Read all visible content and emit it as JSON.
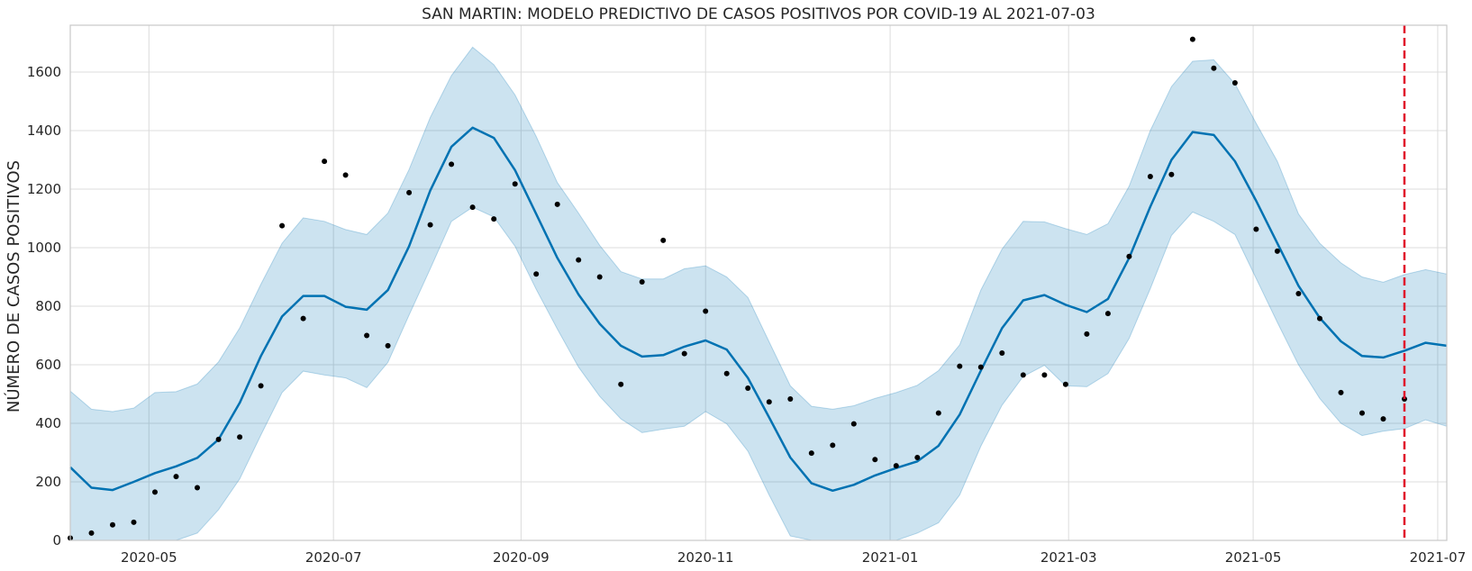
{
  "chart_data": {
    "type": "line",
    "title": "SAN MARTIN: MODELO PREDICTIVO DE CASOS POSITIVOS POR COVID-19 AL 2021-07-03",
    "xlabel": "",
    "ylabel": "NÚMERO DE CASOS POSITIVOS",
    "xlim": [
      "2020-04-05",
      "2021-07-04"
    ],
    "ylim": [
      0,
      1760
    ],
    "y_ticks": [
      0,
      200,
      400,
      600,
      800,
      1000,
      1200,
      1400,
      1600
    ],
    "x_ticks": [
      "2020-05",
      "2020-07",
      "2020-09",
      "2020-11",
      "2021-01",
      "2021-03",
      "2021-05",
      "2021-07"
    ],
    "x_tick_dates": [
      "2020-05-01",
      "2020-07-01",
      "2020-09-01",
      "2020-11-01",
      "2021-01-01",
      "2021-03-01",
      "2021-05-01",
      "2021-07-01"
    ],
    "grid": true,
    "forecast_cutoff": "2021-06-20",
    "colors": {
      "forecast": "#0072b2",
      "band": "#0072b2",
      "observed": "#000000",
      "cutoff": "#e0102a"
    },
    "series": [
      {
        "type": "line",
        "x": [
          "2020-04-05",
          "2020-04-12",
          "2020-04-19",
          "2020-04-26",
          "2020-05-03",
          "2020-05-10",
          "2020-05-17",
          "2020-05-24",
          "2020-05-31",
          "2020-06-07",
          "2020-06-14",
          "2020-06-21",
          "2020-06-28",
          "2020-07-05",
          "2020-07-12",
          "2020-07-19",
          "2020-07-26",
          "2020-08-02",
          "2020-08-09",
          "2020-08-16",
          "2020-08-23",
          "2020-08-30",
          "2020-09-06",
          "2020-09-13",
          "2020-09-20",
          "2020-09-27",
          "2020-10-04",
          "2020-10-11",
          "2020-10-18",
          "2020-10-25",
          "2020-11-01",
          "2020-11-08",
          "2020-11-15",
          "2020-11-22",
          "2020-11-29",
          "2020-12-06",
          "2020-12-13",
          "2020-12-20",
          "2020-12-27",
          "2021-01-03",
          "2021-01-10",
          "2021-01-17",
          "2021-01-24",
          "2021-01-31",
          "2021-02-07",
          "2021-02-14",
          "2021-02-21",
          "2021-02-28",
          "2021-03-07",
          "2021-03-14",
          "2021-03-21",
          "2021-03-28",
          "2021-04-04",
          "2021-04-11",
          "2021-04-18",
          "2021-04-25",
          "2021-05-02",
          "2021-05-09",
          "2021-05-16",
          "2021-05-23",
          "2021-05-30",
          "2021-06-06",
          "2021-06-13",
          "2021-06-20",
          "2021-06-27",
          "2021-07-04"
        ],
        "y": [
          250,
          180,
          172,
          200,
          230,
          253,
          282,
          345,
          470,
          630,
          765,
          835,
          835,
          798,
          788,
          855,
          1005,
          1195,
          1345,
          1410,
          1375,
          1265,
          1115,
          965,
          840,
          740,
          665,
          628,
          633,
          662,
          683,
          652,
          555,
          420,
          283,
          195,
          170,
          190,
          222,
          247,
          270,
          323,
          430,
          580,
          725,
          820,
          838,
          805,
          780,
          825,
          965,
          1140,
          1300,
          1395,
          1385,
          1295,
          1160,
          1015,
          870,
          760,
          680,
          630,
          625,
          648,
          675,
          665
        ]
      },
      {
        "type": "band",
        "x_ref": "series.0.x",
        "upper": [
          510,
          448,
          440,
          452,
          505,
          508,
          534,
          610,
          726,
          875,
          1015,
          1102,
          1090,
          1062,
          1045,
          1118,
          1267,
          1445,
          1588,
          1685,
          1625,
          1522,
          1380,
          1222,
          1118,
          1008,
          918,
          893,
          893,
          928,
          938,
          900,
          830,
          678,
          528,
          458,
          448,
          460,
          485,
          505,
          530,
          580,
          668,
          855,
          995,
          1090,
          1088,
          1065,
          1045,
          1082,
          1210,
          1400,
          1550,
          1637,
          1642,
          1560,
          1425,
          1295,
          1115,
          1015,
          948,
          900,
          882,
          908,
          925,
          910
        ],
        "lower": [
          0,
          0,
          0,
          0,
          0,
          0,
          25,
          105,
          210,
          360,
          505,
          578,
          565,
          555,
          522,
          608,
          770,
          928,
          1090,
          1138,
          1105,
          1005,
          858,
          722,
          592,
          492,
          415,
          368,
          380,
          390,
          440,
          398,
          305,
          155,
          15,
          0,
          0,
          0,
          0,
          0,
          25,
          60,
          155,
          322,
          462,
          560,
          598,
          528,
          525,
          570,
          690,
          860,
          1042,
          1122,
          1090,
          1045,
          895,
          745,
          600,
          485,
          400,
          358,
          373,
          382,
          412,
          390
        ]
      },
      {
        "type": "scatter",
        "x": [
          "2020-04-05",
          "2020-04-12",
          "2020-04-19",
          "2020-04-26",
          "2020-05-03",
          "2020-05-10",
          "2020-05-17",
          "2020-05-24",
          "2020-05-31",
          "2020-06-07",
          "2020-06-14",
          "2020-06-21",
          "2020-06-28",
          "2020-07-05",
          "2020-07-12",
          "2020-07-19",
          "2020-07-26",
          "2020-08-02",
          "2020-08-09",
          "2020-08-16",
          "2020-08-23",
          "2020-08-30",
          "2020-09-06",
          "2020-09-13",
          "2020-09-20",
          "2020-09-27",
          "2020-10-04",
          "2020-10-11",
          "2020-10-18",
          "2020-10-25",
          "2020-11-01",
          "2020-11-08",
          "2020-11-15",
          "2020-11-22",
          "2020-11-29",
          "2020-12-06",
          "2020-12-13",
          "2020-12-20",
          "2020-12-27",
          "2021-01-03",
          "2021-01-10",
          "2021-01-17",
          "2021-01-24",
          "2021-01-31",
          "2021-02-07",
          "2021-02-14",
          "2021-02-21",
          "2021-02-28",
          "2021-03-07",
          "2021-03-14",
          "2021-03-21",
          "2021-03-28",
          "2021-04-04",
          "2021-04-11",
          "2021-04-18",
          "2021-04-25",
          "2021-05-02",
          "2021-05-09",
          "2021-05-16",
          "2021-05-23",
          "2021-05-30",
          "2021-06-06",
          "2021-06-13",
          "2021-06-20"
        ],
        "y": [
          8,
          25,
          53,
          62,
          165,
          218,
          180,
          345,
          353,
          528,
          1075,
          758,
          1295,
          1248,
          700,
          665,
          1188,
          1078,
          1285,
          1138,
          1098,
          1218,
          910,
          1148,
          958,
          900,
          533,
          883,
          1025,
          638,
          783,
          570,
          520,
          473,
          483,
          298,
          325,
          398,
          276,
          255,
          283,
          435,
          595,
          592,
          640,
          565,
          565,
          533,
          705,
          775,
          970,
          1243,
          1250,
          1712,
          1613,
          1563,
          1063,
          988,
          843,
          758,
          505,
          435,
          415,
          483
        ]
      }
    ]
  }
}
